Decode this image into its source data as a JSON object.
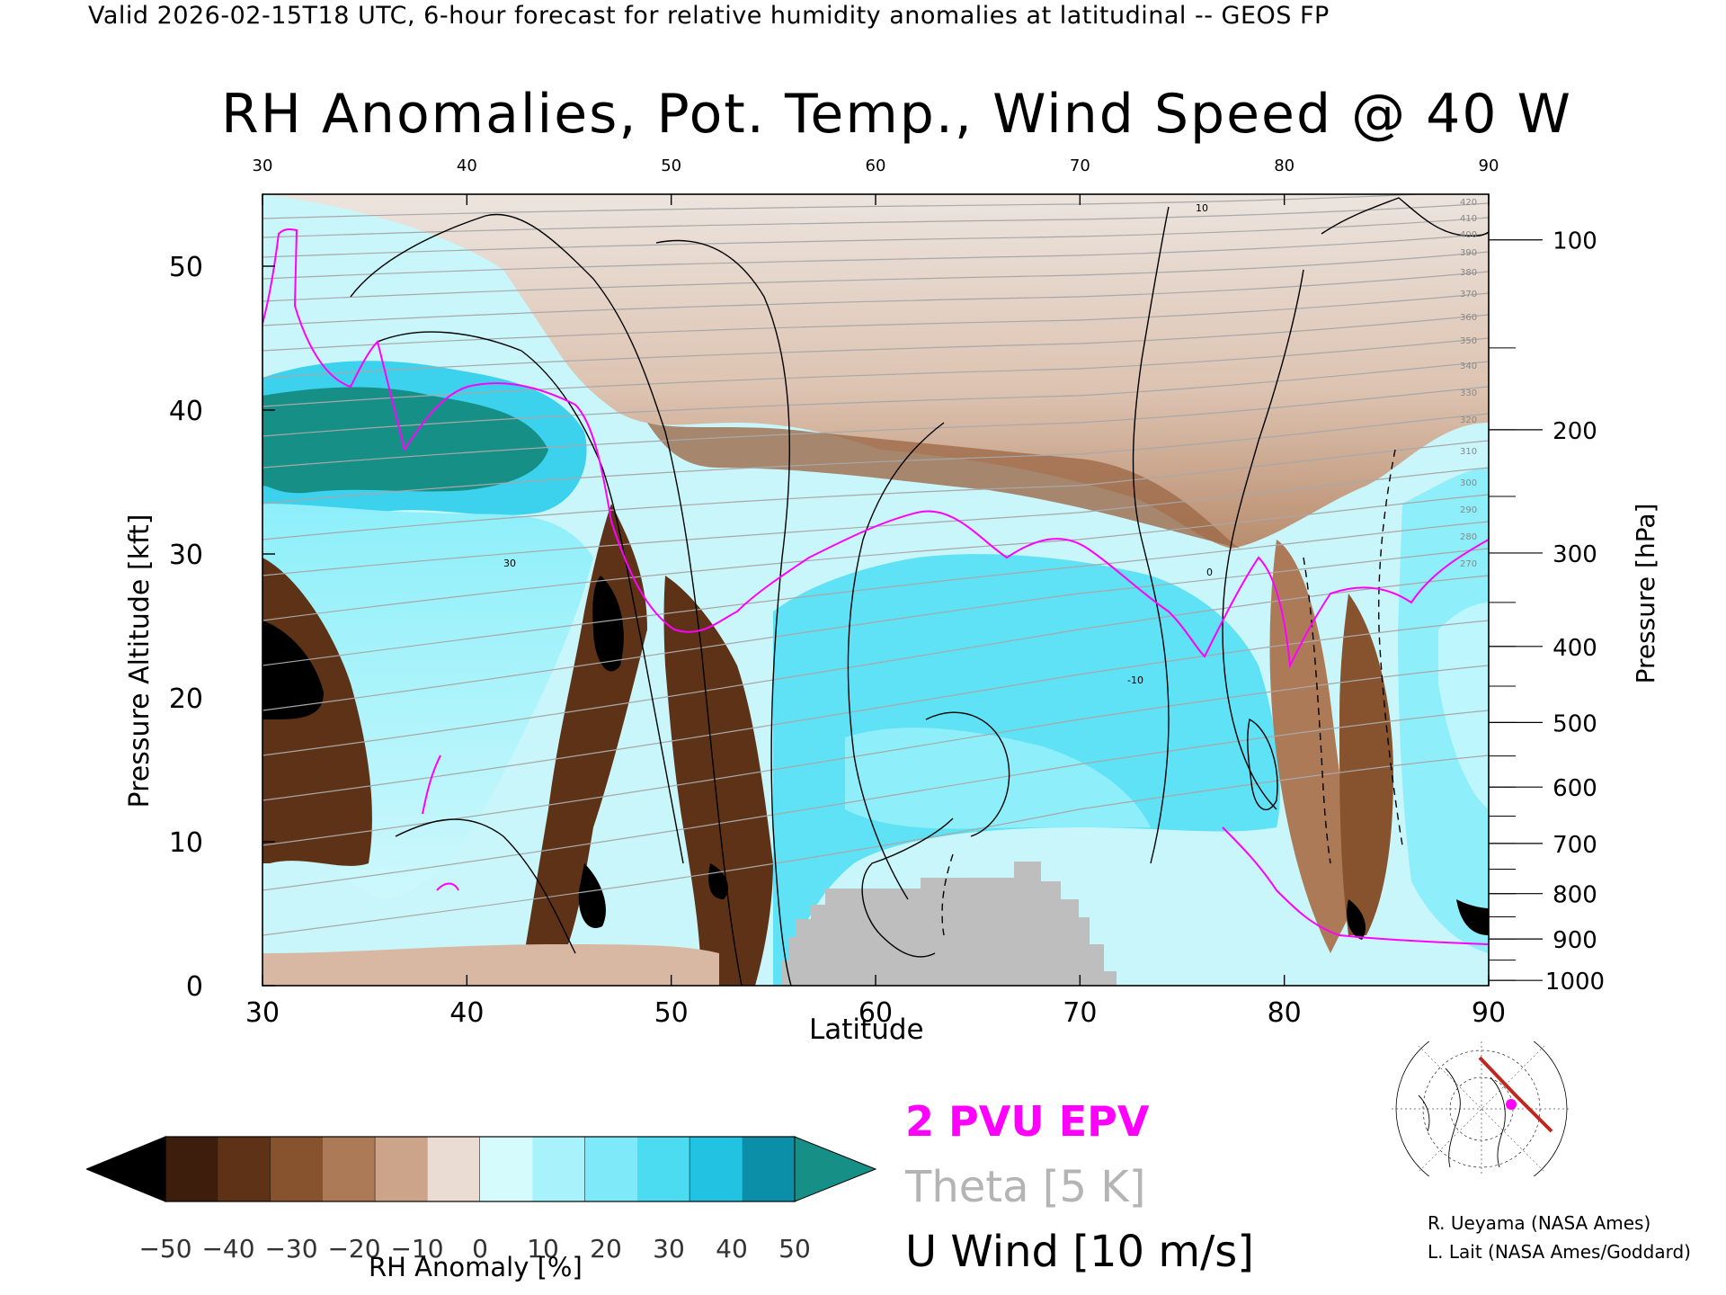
{
  "header": {
    "text": "Valid 2026-02-15T18 UTC, 6-hour forecast for relative humidity anomalies at latitudinal -- GEOS FP"
  },
  "chart_data": {
    "type": "heatmap",
    "title": "RH Anomalies, Pot. Temp., Wind Speed @ 40 W",
    "xlabel": "Latitude",
    "ylabel_left": "Pressure Altitude [kft]",
    "ylabel_right": "Pressure [hPa]",
    "x_ticks": [
      "30",
      "40",
      "50",
      "60",
      "70",
      "80",
      "90"
    ],
    "top_x_ticks": [
      "30",
      "40",
      "50",
      "60",
      "70",
      "80",
      "90"
    ],
    "xlim": [
      30,
      90
    ],
    "y_ticks_kft": [
      "0",
      "10",
      "20",
      "30",
      "40",
      "50"
    ],
    "ylim_kft": [
      0,
      55
    ],
    "pressure_ticks": [
      "100",
      "200",
      "300",
      "400",
      "500",
      "600",
      "700",
      "800",
      "900",
      "1000"
    ],
    "colorbar": {
      "title": "RH Anomaly [%]",
      "tick_labels": [
        "−50",
        "−40",
        "−30",
        "−20",
        "−10",
        "0",
        "10",
        "20",
        "30",
        "40",
        "50"
      ],
      "range": [
        -50,
        50
      ],
      "colors": [
        "#000000",
        "#3d1e0c",
        "#5e3216",
        "#86532e",
        "#ad7a58",
        "#cba48a",
        "#eadcd3",
        "#d6fbfd",
        "#a8f2fb",
        "#7ee9f8",
        "#4cdcf2",
        "#22c2e3",
        "#0b8ea8",
        "#168f86"
      ]
    },
    "theta_contour_labels": [
      "420",
      "410",
      "400",
      "390",
      "380",
      "370",
      "360",
      "350",
      "340",
      "330",
      "320",
      "310",
      "300",
      "290",
      "280",
      "270"
    ],
    "wind_contour_labels": [
      "10",
      "0",
      "-10",
      "30"
    ],
    "legend": [
      {
        "label": "2 PVU EPV",
        "color": "#ff00ff"
      },
      {
        "label": "Theta [5 K]",
        "color": "#b4b4b4"
      },
      {
        "label": "U Wind [10 m/s]",
        "color": "#000000"
      }
    ],
    "terrain_color": "#bebebe"
  },
  "credits": {
    "line1": "R. Ueyama (NASA Ames)",
    "line2": "L. Lait (NASA Ames/Goddard)"
  },
  "map_inset": {
    "track_color": "#c0281e",
    "marker_color": "#ff00ff"
  }
}
